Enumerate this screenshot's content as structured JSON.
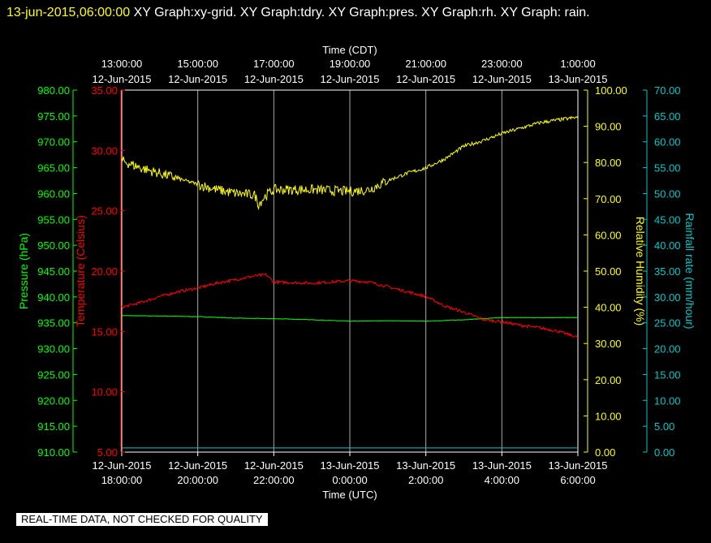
{
  "header": {
    "timestamp": "13-jun-2015,06:00:00",
    "title": "XY Graph:xy-grid.  XY Graph:tdry.  XY Graph:pres.  XY Graph:rh.  XY Graph: rain."
  },
  "footer_note": "REAL-TIME DATA, NOT CHECKED FOR QUALITY",
  "colors": {
    "background": "#000000",
    "grid": "#aaaaaa",
    "pressure": "#00ff00",
    "temperature": "#ff0000",
    "humidity": "#ffff00",
    "rainfall": "#00c8c8",
    "axis_text": "#ffffff"
  },
  "chart_data": {
    "type": "line",
    "top_axis": {
      "label": "Time (CDT)",
      "ticks": [
        {
          "time": "13:00:00",
          "date": "12-Jun-2015"
        },
        {
          "time": "15:00:00",
          "date": "12-Jun-2015"
        },
        {
          "time": "17:00:00",
          "date": "12-Jun-2015"
        },
        {
          "time": "19:00:00",
          "date": "12-Jun-2015"
        },
        {
          "time": "21:00:00",
          "date": "12-Jun-2015"
        },
        {
          "time": "23:00:00",
          "date": "12-Jun-2015"
        },
        {
          "time": "1:00:00",
          "date": "13-Jun-2015"
        }
      ]
    },
    "bottom_axis": {
      "label": "Time (UTC)",
      "ticks": [
        {
          "date": "12-Jun-2015",
          "time": "18:00:00"
        },
        {
          "date": "12-Jun-2015",
          "time": "20:00:00"
        },
        {
          "date": "12-Jun-2015",
          "time": "22:00:00"
        },
        {
          "date": "13-Jun-2015",
          "time": "0:00:00"
        },
        {
          "date": "13-Jun-2015",
          "time": "2:00:00"
        },
        {
          "date": "13-Jun-2015",
          "time": "4:00:00"
        },
        {
          "date": "13-Jun-2015",
          "time": "6:00:00"
        }
      ],
      "range_hours_utc": [
        0,
        12
      ]
    },
    "pressure_axis": {
      "label": "Pressure (hPa)",
      "range": [
        910,
        980
      ],
      "ticks": [
        "980.00",
        "975.00",
        "970.00",
        "965.00",
        "960.00",
        "955.00",
        "950.00",
        "945.00",
        "940.00",
        "935.00",
        "930.00",
        "925.00",
        "920.00",
        "915.00",
        "910.00"
      ]
    },
    "temperature_axis": {
      "label": "Temperature (Celsius)",
      "range": [
        5,
        35
      ],
      "ticks": [
        "35.00",
        "30.00",
        "25.00",
        "20.00",
        "15.00",
        "10.00",
        "5.00"
      ]
    },
    "humidity_axis": {
      "label": "Relative Humidity (%)",
      "range": [
        0,
        100
      ],
      "ticks": [
        "100.00",
        "90.00",
        "80.00",
        "70.00",
        "60.00",
        "50.00",
        "40.00",
        "30.00",
        "20.00",
        "10.00",
        "0.00"
      ]
    },
    "rainfall_axis": {
      "label": "Rainfall rate (mm/hour)",
      "range": [
        0,
        70
      ],
      "ticks": [
        "70.00",
        "65.00",
        "60.00",
        "55.00",
        "50.00",
        "45.00",
        "40.00",
        "35.00",
        "30.00",
        "25.00",
        "20.00",
        "15.00",
        "10.00",
        "5.00",
        "0.00"
      ]
    },
    "series": [
      {
        "name": "Pressure",
        "axis": "pressure",
        "x_hours": [
          0,
          1,
          2,
          3,
          4,
          5,
          6,
          7,
          8,
          9,
          10,
          11,
          12
        ],
        "values": [
          936.4,
          936.3,
          936.2,
          935.9,
          935.8,
          935.6,
          935.3,
          935.4,
          935.3,
          935.6,
          936.0,
          936.0,
          936.0
        ]
      },
      {
        "name": "Temperature",
        "axis": "temperature",
        "x_hours": [
          0,
          0.5,
          1,
          1.5,
          2,
          2.5,
          3,
          3.5,
          3.8,
          4,
          5,
          6,
          6.5,
          7,
          7.5,
          8,
          8.5,
          9,
          9.5,
          10,
          10.5,
          11,
          11.5,
          12
        ],
        "values": [
          17.0,
          17.4,
          17.9,
          18.3,
          18.6,
          19.0,
          19.3,
          19.6,
          19.7,
          19.1,
          19.0,
          19.2,
          19.1,
          18.7,
          18.3,
          17.9,
          17.1,
          16.6,
          16.0,
          15.8,
          15.5,
          15.3,
          15.0,
          14.5
        ]
      },
      {
        "name": "Relative Humidity",
        "axis": "humidity",
        "x_hours": [
          0,
          0.5,
          1,
          1.5,
          2,
          2.5,
          3,
          3.5,
          3.6,
          3.8,
          4,
          5,
          6,
          6.5,
          7,
          7.5,
          8,
          8.5,
          9,
          9.5,
          10,
          10.5,
          11,
          11.5,
          12
        ],
        "values": [
          80.5,
          78.5,
          77.0,
          75.5,
          74.0,
          72.5,
          71.5,
          71.0,
          68.5,
          71.0,
          72.5,
          72.5,
          72.0,
          72.5,
          75.0,
          77.0,
          78.5,
          81.0,
          84.5,
          86.0,
          88.0,
          89.5,
          91.0,
          91.8,
          92.5
        ]
      },
      {
        "name": "Rainfall rate",
        "axis": "rainfall",
        "x_hours": [
          0,
          12
        ],
        "values": [
          0.8,
          0.8
        ]
      }
    ],
    "grid": true
  }
}
